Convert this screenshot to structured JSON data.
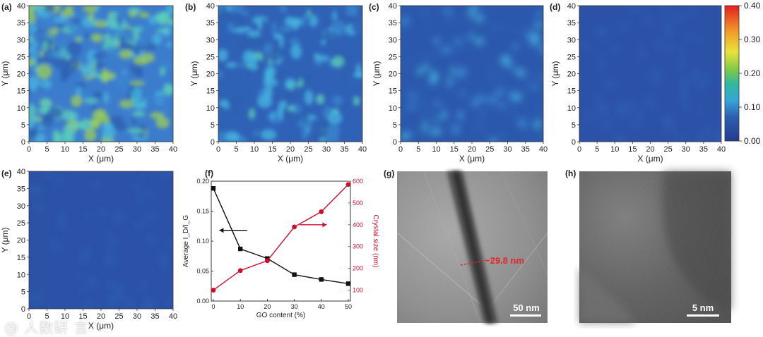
{
  "panels": {
    "a": "(a)",
    "b": "(b)",
    "c": "(c)",
    "d": "(d)",
    "e": "(e)",
    "f": "(f)",
    "g": "(g)",
    "h": "(h)"
  },
  "maps": {
    "xlabel": "X (μm)",
    "ylabel": "Y (μm)",
    "ticks": [
      "0",
      "5",
      "10",
      "15",
      "20",
      "25",
      "30",
      "35",
      "40"
    ],
    "levels": [
      0.14,
      0.1,
      0.075,
      0.035,
      0.03
    ]
  },
  "colorbar": {
    "ticks": [
      "0.40",
      "0.30",
      "0.20",
      "0.10",
      "0.00"
    ],
    "colors": [
      "#e41f1f",
      "#f1a02a",
      "#e9e23a",
      "#7cc74a",
      "#2fb8a0",
      "#36a6d8",
      "#2f5fb0",
      "#233b8f"
    ]
  },
  "tem": {
    "g_annotation": "~29.8 nm",
    "g_scalebar": "50 nm",
    "h_scalebar": "5 nm"
  },
  "watermark": "@ 人数研 言",
  "chart_data": {
    "type": "line",
    "x": [
      0,
      10,
      20,
      30,
      40,
      50
    ],
    "xlabel": "GO content (%)",
    "ylabel_left": "Average I_D/I_G",
    "ylabel_right": "Crystal size (nm)",
    "xlim": [
      0,
      50
    ],
    "ylim_left": [
      0,
      0.2
    ],
    "ylim_right": [
      50,
      600
    ],
    "xticks": [
      "0",
      "10",
      "20",
      "30",
      "40",
      "50"
    ],
    "yticks_left": [
      "0.00",
      "0.05",
      "0.10",
      "0.15",
      "0.20"
    ],
    "yticks_right": [
      "100",
      "200",
      "300",
      "400",
      "500",
      "600"
    ],
    "series": [
      {
        "axis": "left",
        "color": "#111111",
        "marker": "square",
        "values": [
          0.188,
          0.087,
          0.071,
          0.044,
          0.036,
          0.029
        ]
      },
      {
        "axis": "right",
        "color": "#c8102e",
        "marker": "circle",
        "values": [
          100,
          190,
          235,
          390,
          460,
          585
        ]
      }
    ],
    "grid": false
  }
}
